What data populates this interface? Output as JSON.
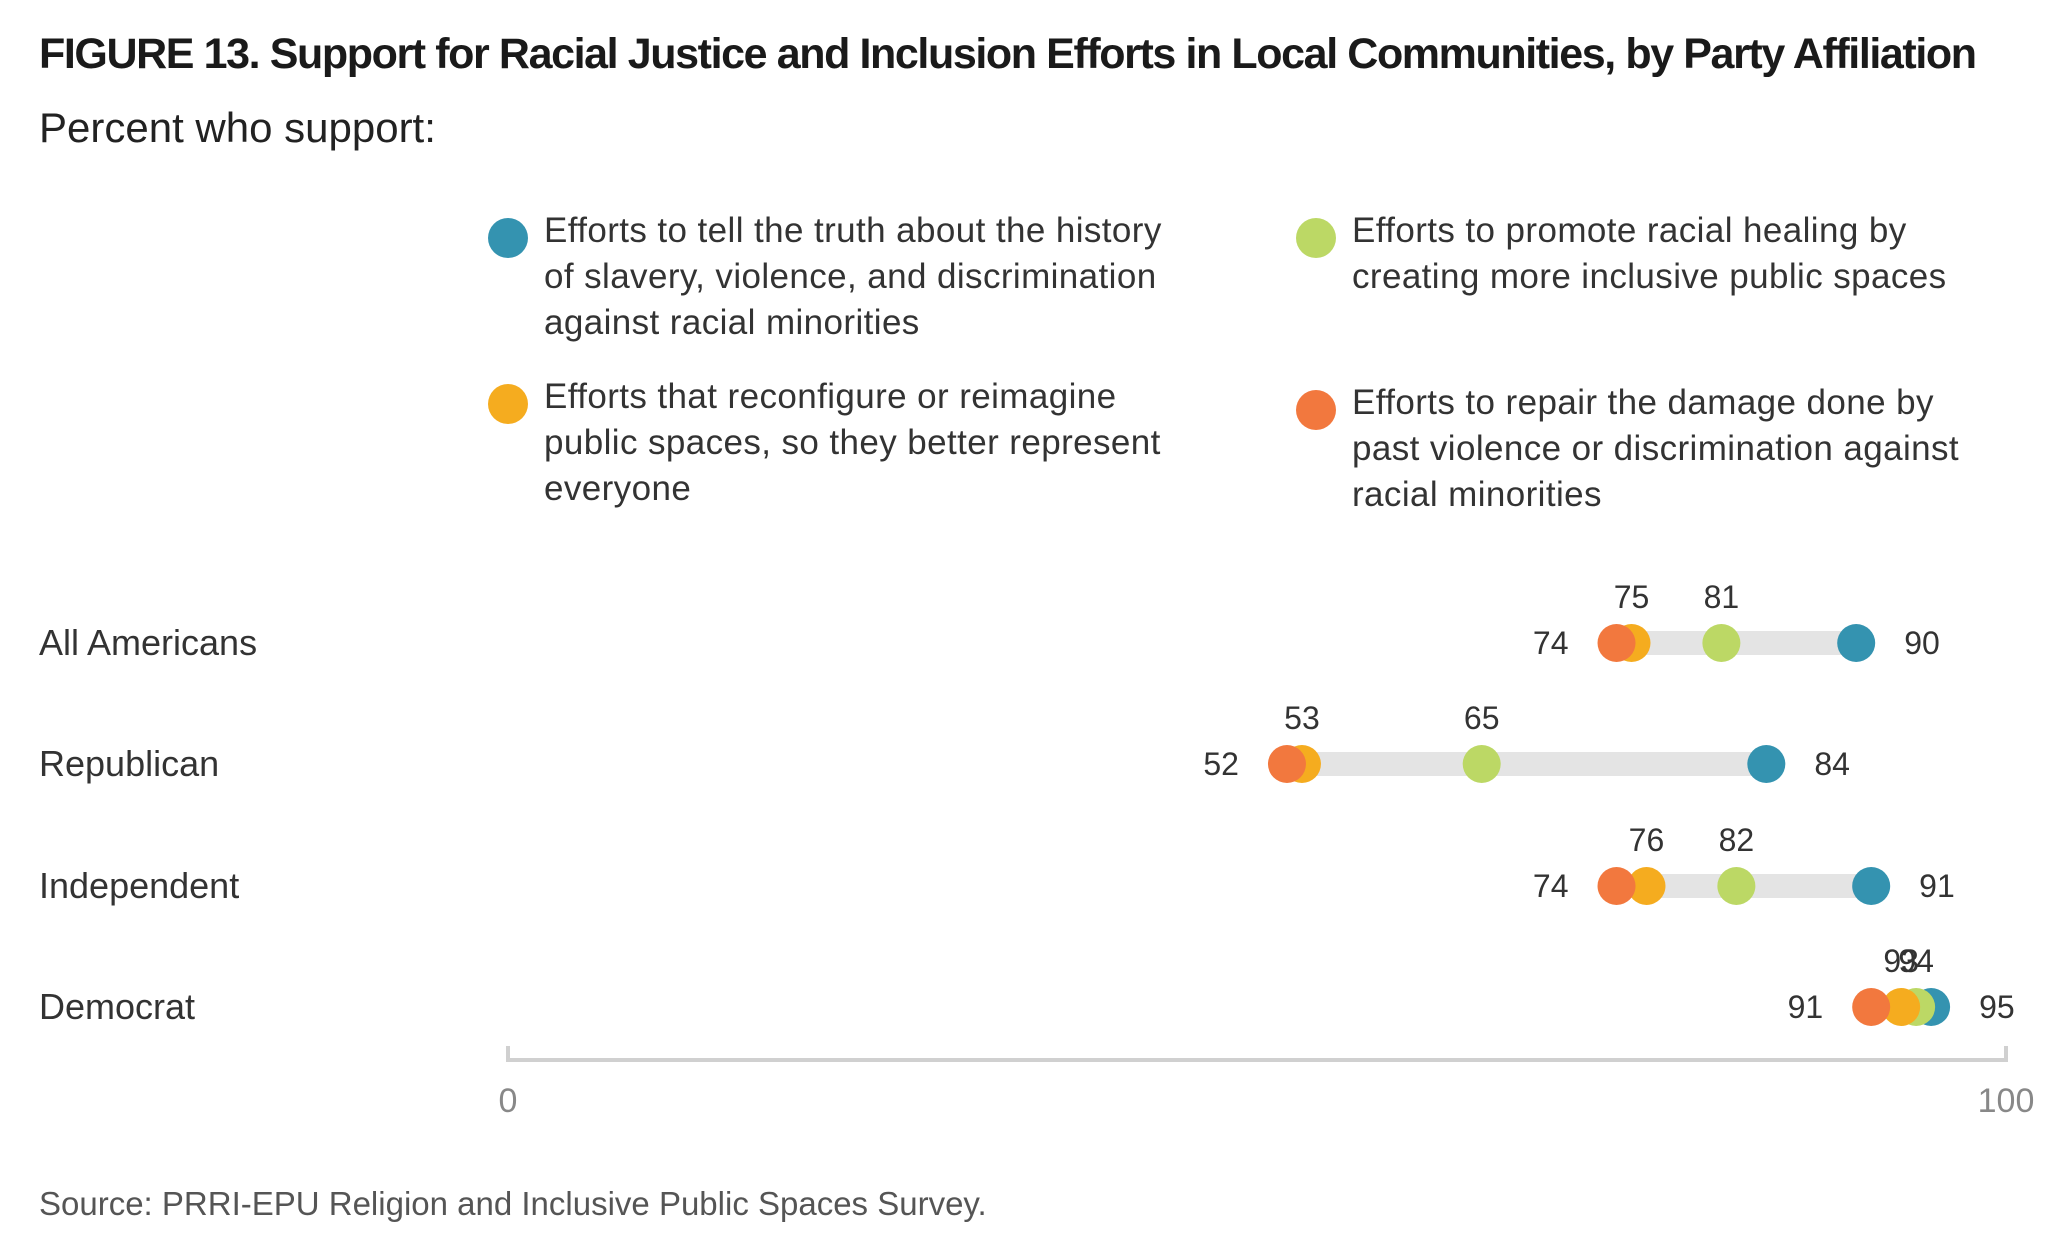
{
  "title": "FIGURE 13. Support for Racial Justice and Inclusion Efforts in Local Communities, by Party Affiliation",
  "subtitle": "Percent who support:",
  "source": "Source: PRRI-EPU Religion and Inclusive Public Spaces Survey.",
  "colors": {
    "truth": "#3493b0",
    "healing": "#bcd865",
    "reimagine": "#f5ac1f",
    "repair": "#f2783e",
    "track": "#e4e4e4",
    "axis": "#d0d0d0"
  },
  "legend": [
    {
      "key": "truth",
      "label": "Efforts to tell the truth about the history\nof slavery, violence, and discrimination\nagainst racial minorities"
    },
    {
      "key": "healing",
      "label": "Efforts to promote racial healing by\ncreating more inclusive public spaces"
    },
    {
      "key": "reimagine",
      "label": "Efforts that reconfigure or reimagine\npublic spaces, so they better represent\neveryone"
    },
    {
      "key": "repair",
      "label": "Efforts to repair  the damage done by\npast violence or discrimination against\nracial minorities"
    }
  ],
  "chart_data": {
    "type": "dot",
    "xlim": [
      0,
      100
    ],
    "x_tick_labels": [
      "0",
      "100"
    ],
    "categories": [
      "All Americans",
      "Republican",
      "Independent",
      "Democrat"
    ],
    "series": [
      {
        "key": "truth",
        "name": "Efforts to tell the truth about the history of slavery, violence, and discrimination against racial minorities",
        "values": [
          90,
          84,
          91,
          95
        ]
      },
      {
        "key": "healing",
        "name": "Efforts to promote racial healing by creating more inclusive public spaces",
        "values": [
          81,
          65,
          82,
          94
        ]
      },
      {
        "key": "reimagine",
        "name": "Efforts that reconfigure or reimagine public spaces, so they better represent everyone",
        "values": [
          75,
          53,
          76,
          93
        ]
      },
      {
        "key": "repair",
        "name": "Efforts to repair the damage done by past violence or discrimination against racial minorities",
        "values": [
          74,
          52,
          74,
          91
        ]
      }
    ],
    "data_labels": [
      {
        "category": "All Americans",
        "above": [
          "75",
          "81"
        ],
        "left": "74",
        "right": "90"
      },
      {
        "category": "Republican",
        "above": [
          "53",
          "65"
        ],
        "left": "52",
        "right": "84"
      },
      {
        "category": "Independent",
        "above": [
          "76",
          "82"
        ],
        "left": "74",
        "right": "91"
      },
      {
        "category": "Democrat",
        "above": [
          "93",
          "94"
        ],
        "left": "91",
        "right": "95"
      }
    ]
  }
}
